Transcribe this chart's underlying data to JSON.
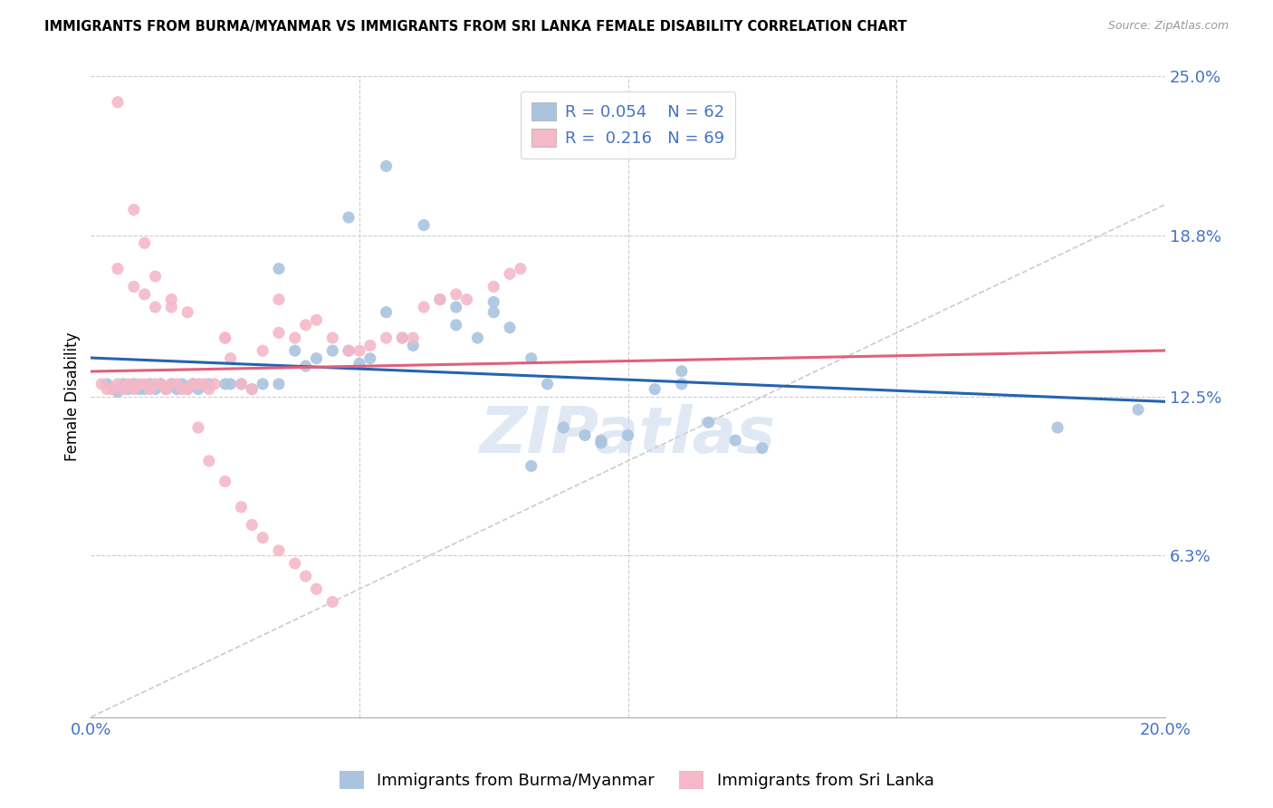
{
  "title": "IMMIGRANTS FROM BURMA/MYANMAR VS IMMIGRANTS FROM SRI LANKA FEMALE DISABILITY CORRELATION CHART",
  "source": "Source: ZipAtlas.com",
  "ylabel": "Female Disability",
  "xlim": [
    0.0,
    0.2
  ],
  "ylim": [
    0.0,
    0.25
  ],
  "x_tick_positions": [
    0.0,
    0.05,
    0.1,
    0.15,
    0.2
  ],
  "x_tick_labels": [
    "0.0%",
    "",
    "",
    "",
    "20.0%"
  ],
  "y_tick_vals_right": [
    0.25,
    0.188,
    0.125,
    0.063
  ],
  "y_tick_labels_right": [
    "25.0%",
    "18.8%",
    "12.5%",
    "6.3%"
  ],
  "color_burma": "#aac4e0",
  "color_srilanka": "#f4b8c8",
  "color_burma_line": "#2563b0",
  "color_srilanka_line": "#e0607a",
  "color_diag_line": "#cccccc",
  "color_text_blue": "#4472c4",
  "color_grid": "#cccccc",
  "burma_R": 0.054,
  "burma_N": 62,
  "srilanka_R": 0.216,
  "srilanka_N": 69,
  "scatter_burma_x": [
    0.003,
    0.004,
    0.005,
    0.006,
    0.007,
    0.008,
    0.009,
    0.01,
    0.011,
    0.012,
    0.013,
    0.014,
    0.015,
    0.016,
    0.017,
    0.018,
    0.019,
    0.02,
    0.022,
    0.025,
    0.026,
    0.028,
    0.03,
    0.032,
    0.035,
    0.038,
    0.04,
    0.042,
    0.045,
    0.048,
    0.05,
    0.052,
    0.055,
    0.058,
    0.06,
    0.065,
    0.068,
    0.072,
    0.075,
    0.078,
    0.082,
    0.085,
    0.088,
    0.092,
    0.095,
    0.1,
    0.105,
    0.11,
    0.115,
    0.12,
    0.125,
    0.048,
    0.055,
    0.062,
    0.068,
    0.075,
    0.082,
    0.095,
    0.11,
    0.18,
    0.195,
    0.035
  ],
  "scatter_burma_y": [
    0.13,
    0.128,
    0.127,
    0.13,
    0.128,
    0.13,
    0.128,
    0.128,
    0.13,
    0.128,
    0.13,
    0.128,
    0.13,
    0.128,
    0.13,
    0.128,
    0.13,
    0.128,
    0.13,
    0.13,
    0.13,
    0.13,
    0.128,
    0.13,
    0.13,
    0.143,
    0.137,
    0.14,
    0.143,
    0.143,
    0.138,
    0.14,
    0.158,
    0.148,
    0.145,
    0.163,
    0.153,
    0.148,
    0.158,
    0.152,
    0.14,
    0.13,
    0.113,
    0.11,
    0.107,
    0.11,
    0.128,
    0.13,
    0.115,
    0.108,
    0.105,
    0.195,
    0.215,
    0.192,
    0.16,
    0.162,
    0.098,
    0.108,
    0.135,
    0.113,
    0.12,
    0.175
  ],
  "scatter_srilanka_x": [
    0.002,
    0.003,
    0.004,
    0.005,
    0.006,
    0.007,
    0.008,
    0.009,
    0.01,
    0.011,
    0.012,
    0.013,
    0.014,
    0.015,
    0.016,
    0.017,
    0.018,
    0.019,
    0.02,
    0.021,
    0.022,
    0.023,
    0.025,
    0.026,
    0.028,
    0.03,
    0.032,
    0.035,
    0.038,
    0.04,
    0.042,
    0.045,
    0.048,
    0.05,
    0.052,
    0.055,
    0.058,
    0.06,
    0.062,
    0.065,
    0.068,
    0.07,
    0.075,
    0.078,
    0.08,
    0.005,
    0.008,
    0.01,
    0.012,
    0.015,
    0.018,
    0.02,
    0.022,
    0.025,
    0.028,
    0.03,
    0.032,
    0.035,
    0.038,
    0.04,
    0.042,
    0.045,
    0.005,
    0.008,
    0.01,
    0.012,
    0.015,
    0.025,
    0.035
  ],
  "scatter_srilanka_y": [
    0.13,
    0.128,
    0.128,
    0.13,
    0.128,
    0.13,
    0.128,
    0.13,
    0.13,
    0.128,
    0.13,
    0.13,
    0.128,
    0.13,
    0.13,
    0.128,
    0.128,
    0.13,
    0.13,
    0.13,
    0.128,
    0.13,
    0.148,
    0.14,
    0.13,
    0.128,
    0.143,
    0.163,
    0.148,
    0.153,
    0.155,
    0.148,
    0.143,
    0.143,
    0.145,
    0.148,
    0.148,
    0.148,
    0.16,
    0.163,
    0.165,
    0.163,
    0.168,
    0.173,
    0.175,
    0.175,
    0.168,
    0.165,
    0.16,
    0.163,
    0.158,
    0.113,
    0.1,
    0.092,
    0.082,
    0.075,
    0.07,
    0.065,
    0.06,
    0.055,
    0.05,
    0.045,
    0.24,
    0.198,
    0.185,
    0.172,
    0.16,
    0.148,
    0.15
  ]
}
